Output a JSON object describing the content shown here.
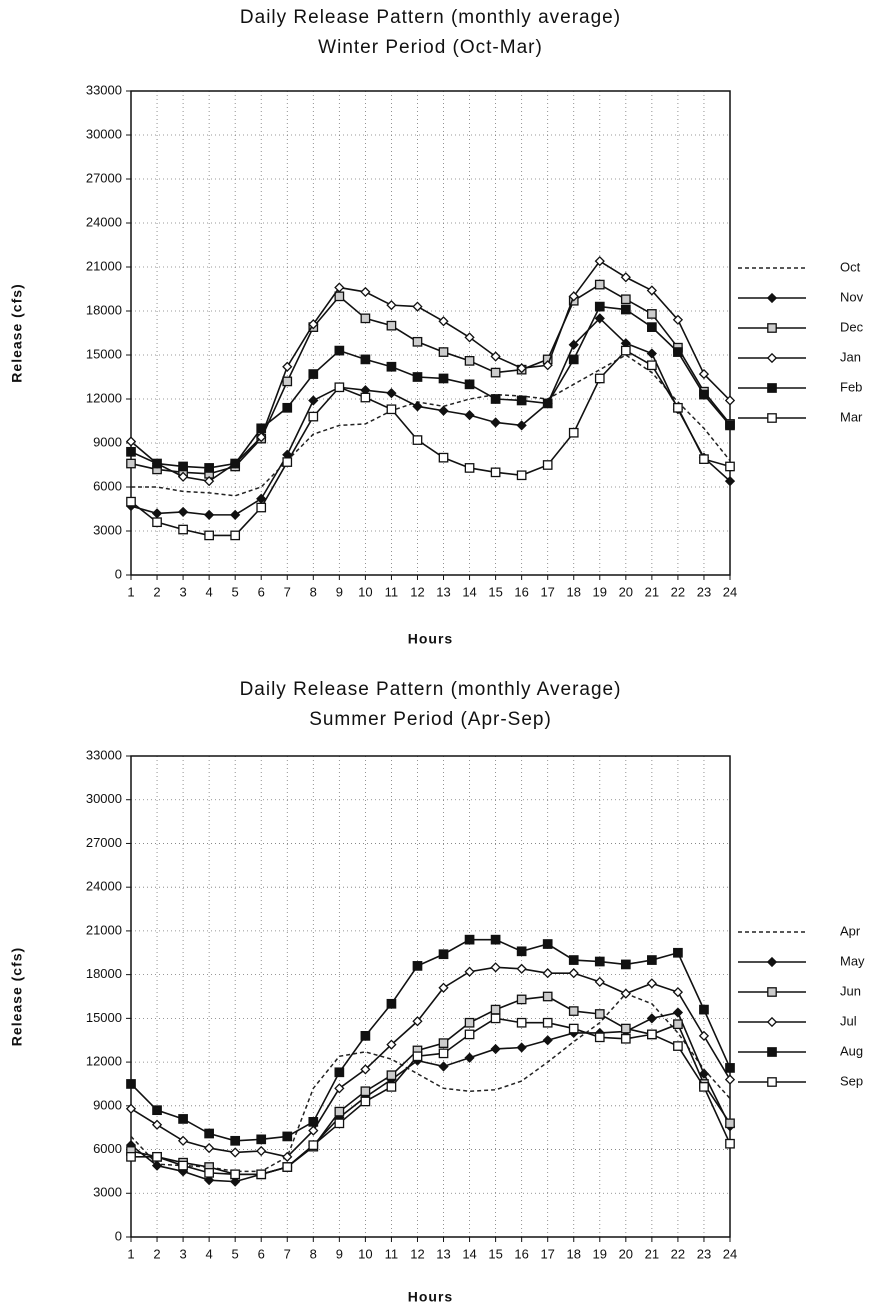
{
  "chart_data": [
    {
      "type": "line",
      "title": "Daily Release Pattern  (monthly  average)",
      "subtitle": "Winter Period (Oct-Mar)",
      "xlabel": "Hours",
      "ylabel": "Release  (cfs)",
      "grid": true,
      "legend": "right",
      "x": [
        1,
        2,
        3,
        4,
        5,
        6,
        7,
        8,
        9,
        10,
        11,
        12,
        13,
        14,
        15,
        16,
        17,
        18,
        19,
        20,
        21,
        22,
        23,
        24
      ],
      "xlim": [
        1,
        24
      ],
      "xticks": [
        1,
        2,
        3,
        4,
        5,
        6,
        7,
        8,
        9,
        10,
        11,
        12,
        13,
        14,
        15,
        16,
        17,
        18,
        19,
        20,
        21,
        22,
        23,
        24
      ],
      "ylim": [
        0,
        33000
      ],
      "yticks": [
        0,
        3000,
        6000,
        9000,
        12000,
        15000,
        18000,
        21000,
        24000,
        27000,
        30000,
        33000
      ],
      "series": [
        {
          "name": "Oct",
          "color": "#222",
          "dash": true,
          "marker": "none",
          "values": [
            6000,
            6000,
            5700,
            5600,
            5400,
            6000,
            7800,
            9600,
            10200,
            10300,
            11200,
            11800,
            11500,
            12000,
            12300,
            12200,
            12000,
            13000,
            14000,
            15000,
            13800,
            11800,
            10000,
            7800
          ]
        },
        {
          "name": "Nov",
          "color": "#111",
          "dash": false,
          "marker": "diamond-filled",
          "values": [
            4700,
            4200,
            4300,
            4100,
            4100,
            5200,
            8200,
            11900,
            12800,
            12600,
            12400,
            11500,
            11200,
            10900,
            10400,
            10200,
            11700,
            15700,
            17500,
            15800,
            15100,
            11300,
            8000,
            6400
          ]
        },
        {
          "name": "Dec",
          "color": "#111",
          "dash": false,
          "marker": "square-dot",
          "values": [
            7600,
            7200,
            7000,
            6900,
            7400,
            9300,
            13200,
            16900,
            19000,
            17500,
            17000,
            15900,
            15200,
            14600,
            13800,
            14000,
            14700,
            18700,
            19800,
            18800,
            17800,
            15500,
            12500,
            10300
          ]
        },
        {
          "name": "Jan",
          "color": "#111",
          "dash": false,
          "marker": "diamond-open",
          "values": [
            9100,
            7600,
            6700,
            6400,
            7600,
            9400,
            14200,
            17100,
            19600,
            19300,
            18400,
            18300,
            17300,
            16200,
            14900,
            14100,
            14300,
            19000,
            21400,
            20300,
            19400,
            17400,
            13700,
            11900
          ]
        },
        {
          "name": "Feb",
          "color": "#111",
          "dash": false,
          "marker": "square-filled",
          "values": [
            8400,
            7600,
            7400,
            7300,
            7600,
            10000,
            11400,
            13700,
            15300,
            14700,
            14200,
            13500,
            13400,
            13000,
            12000,
            11900,
            11700,
            14700,
            18300,
            18100,
            16900,
            15200,
            12300,
            10200
          ]
        },
        {
          "name": "Mar",
          "color": "#111",
          "dash": false,
          "marker": "square-open",
          "values": [
            5000,
            3600,
            3100,
            2700,
            2700,
            4600,
            7700,
            10800,
            12800,
            12100,
            11300,
            9200,
            8000,
            7300,
            7000,
            6800,
            7500,
            9700,
            13400,
            15300,
            14300,
            11400,
            7900,
            7400
          ]
        }
      ]
    },
    {
      "type": "line",
      "title": "Daily  Release  Pattern  (monthly  Average)",
      "subtitle": "Summer Period (Apr-Sep)",
      "xlabel": "Hours",
      "ylabel": "Release  (cfs)",
      "grid": true,
      "legend": "right",
      "x": [
        1,
        2,
        3,
        4,
        5,
        6,
        7,
        8,
        9,
        10,
        11,
        12,
        13,
        14,
        15,
        16,
        17,
        18,
        19,
        20,
        21,
        22,
        23,
        24
      ],
      "xlim": [
        1,
        24
      ],
      "xticks": [
        1,
        2,
        3,
        4,
        5,
        6,
        7,
        8,
        9,
        10,
        11,
        12,
        13,
        14,
        15,
        16,
        17,
        18,
        19,
        20,
        21,
        22,
        23,
        24
      ],
      "ylim": [
        0,
        33000
      ],
      "yticks": [
        0,
        3000,
        6000,
        9000,
        12000,
        15000,
        18000,
        21000,
        24000,
        27000,
        30000,
        33000
      ],
      "series": [
        {
          "name": "Apr",
          "color": "#222",
          "dash": true,
          "marker": "none",
          "values": [
            6900,
            5000,
            4900,
            4800,
            4500,
            4500,
            5500,
            10200,
            12400,
            12700,
            12200,
            11200,
            10200,
            10000,
            10100,
            10700,
            12000,
            13400,
            14700,
            16700,
            16000,
            14000,
            11500,
            9500
          ]
        },
        {
          "name": "May",
          "color": "#111",
          "dash": false,
          "marker": "diamond-filled",
          "values": [
            6300,
            4900,
            4500,
            3900,
            3800,
            4300,
            4800,
            6300,
            8200,
            9600,
            10800,
            12100,
            11700,
            12300,
            12900,
            13000,
            13500,
            14000,
            14000,
            14100,
            15000,
            15400,
            11200,
            7600
          ]
        },
        {
          "name": "Jun",
          "color": "#111",
          "dash": false,
          "marker": "square-dot",
          "values": [
            5900,
            5500,
            5100,
            4800,
            4300,
            4300,
            4800,
            6200,
            8600,
            10000,
            11100,
            12800,
            13300,
            14700,
            15600,
            16300,
            16500,
            15500,
            15300,
            14300,
            13900,
            14600,
            10500,
            7800
          ]
        },
        {
          "name": "Jul",
          "color": "#111",
          "dash": false,
          "marker": "diamond-open",
          "values": [
            8800,
            7700,
            6600,
            6100,
            5800,
            5900,
            5500,
            7300,
            10200,
            11500,
            13200,
            14800,
            17100,
            18200,
            18500,
            18400,
            18100,
            18100,
            17500,
            16700,
            17400,
            16800,
            13800,
            10800
          ]
        },
        {
          "name": "Aug",
          "color": "#111",
          "dash": false,
          "marker": "square-filled",
          "values": [
            10500,
            8700,
            8100,
            7100,
            6600,
            6700,
            6900,
            7900,
            11300,
            13800,
            16000,
            18600,
            19400,
            20400,
            20400,
            19600,
            20100,
            19000,
            18900,
            18700,
            19000,
            19500,
            15600,
            11600
          ]
        },
        {
          "name": "Sep",
          "color": "#111",
          "dash": false,
          "marker": "square-open",
          "values": [
            5500,
            5500,
            4900,
            4400,
            4300,
            4300,
            4800,
            6300,
            7800,
            9300,
            10300,
            12400,
            12600,
            13900,
            15000,
            14700,
            14700,
            14300,
            13700,
            13600,
            13900,
            13100,
            10300,
            6400
          ]
        }
      ]
    }
  ]
}
